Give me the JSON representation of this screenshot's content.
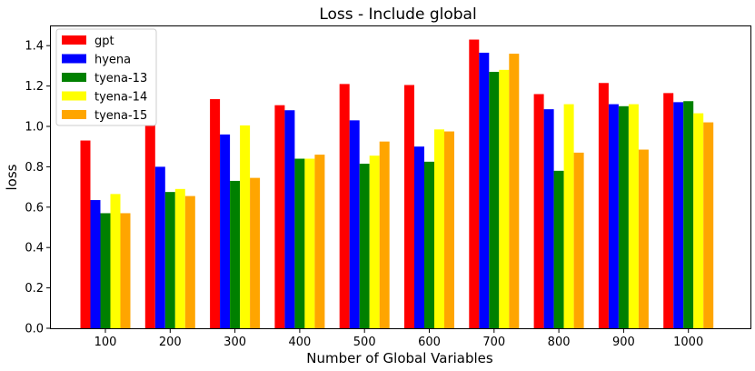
{
  "chart_data": {
    "type": "bar",
    "title": "Loss - Include global",
    "xlabel": "Number of Global Variables",
    "ylabel": "loss",
    "ylim": [
      0,
      1.5
    ],
    "yticks": [
      "0.0",
      "0.2",
      "0.4",
      "0.6",
      "0.8",
      "1.0",
      "1.2",
      "1.4"
    ],
    "categories": [
      "100",
      "200",
      "300",
      "400",
      "500",
      "600",
      "700",
      "800",
      "900",
      "1000"
    ],
    "legend_position": "top-left",
    "grid": false,
    "series": [
      {
        "name": "gpt",
        "color": "#ff0000",
        "values": [
          0.93,
          1.04,
          1.135,
          1.105,
          1.21,
          1.205,
          1.43,
          1.16,
          1.215,
          1.165
        ]
      },
      {
        "name": "hyena",
        "color": "#0000ff",
        "values": [
          0.635,
          0.8,
          0.96,
          1.08,
          1.03,
          0.9,
          1.365,
          1.085,
          1.11,
          1.12
        ]
      },
      {
        "name": "tyena-13",
        "color": "#008000",
        "values": [
          0.57,
          0.675,
          0.73,
          0.84,
          0.815,
          0.825,
          1.27,
          0.78,
          1.1,
          1.125
        ]
      },
      {
        "name": "tyena-14",
        "color": "#ffff00",
        "values": [
          0.665,
          0.69,
          1.005,
          0.84,
          0.855,
          0.985,
          1.28,
          1.11,
          1.11,
          1.065
        ]
      },
      {
        "name": "tyena-15",
        "color": "#ffa500",
        "values": [
          0.57,
          0.655,
          0.745,
          0.86,
          0.925,
          0.975,
          1.36,
          0.87,
          0.885,
          1.02
        ]
      }
    ]
  }
}
